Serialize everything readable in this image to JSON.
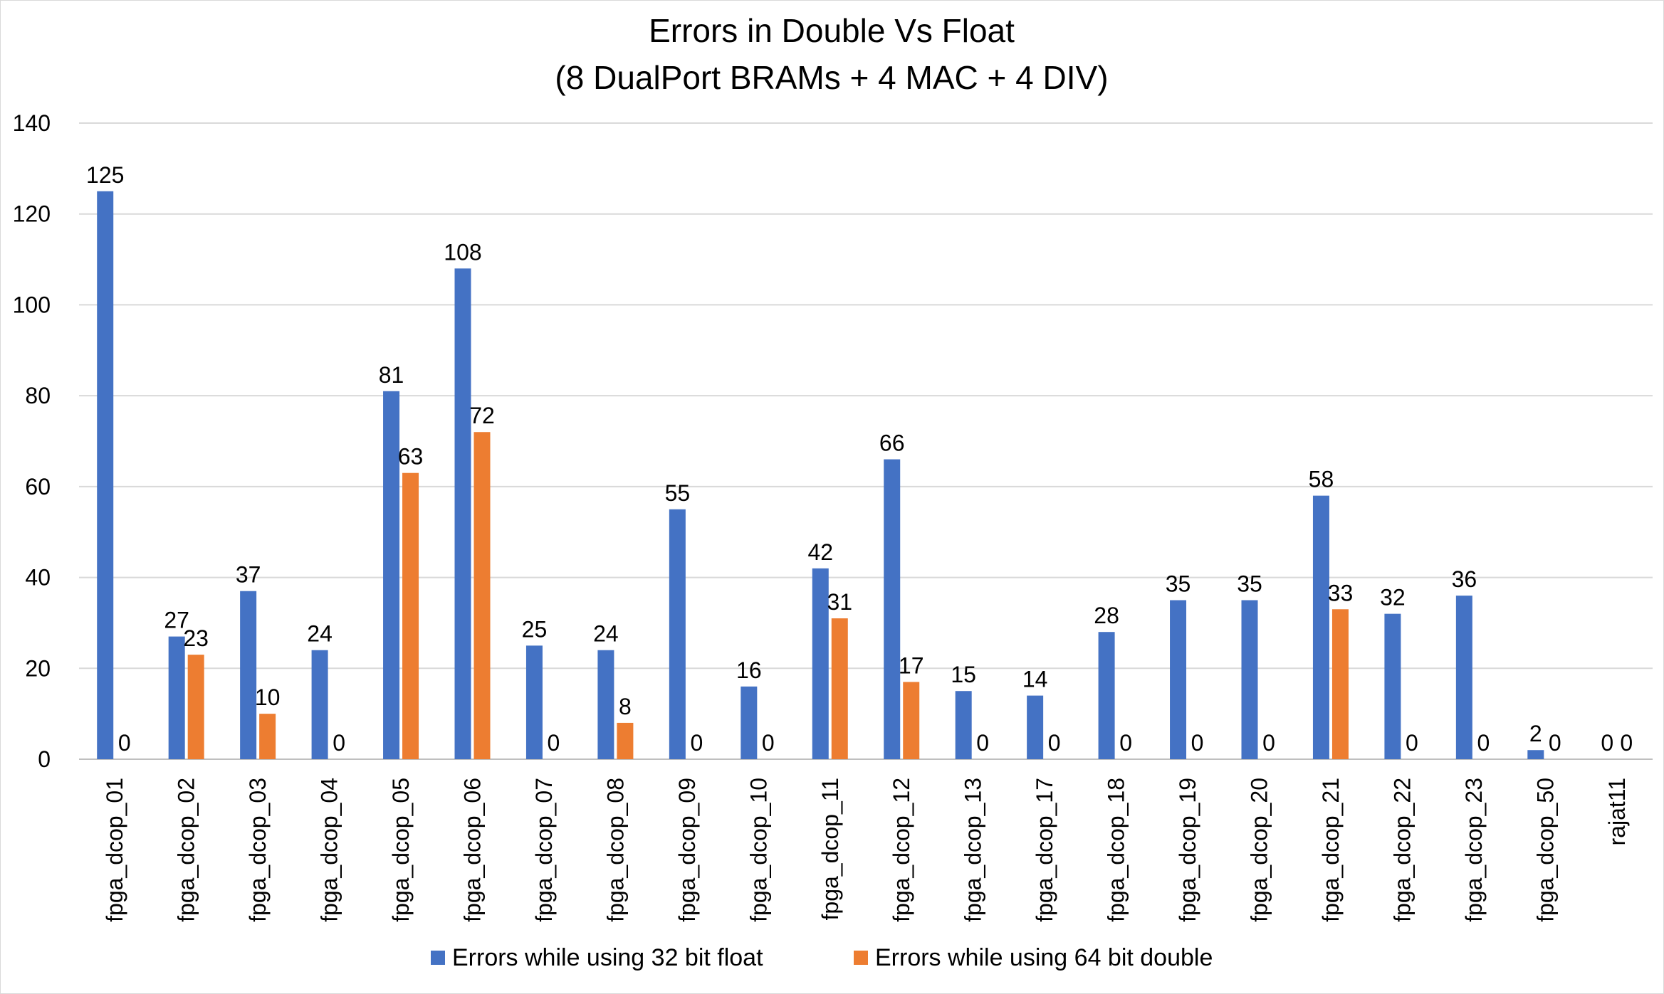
{
  "chart_data": {
    "type": "bar",
    "title": "Errors in Double Vs Float",
    "subtitle": "(8 DualPort BRAMs + 4 MAC + 4 DIV)",
    "xlabel": "",
    "ylabel": "",
    "ylim": [
      0,
      140
    ],
    "yticks": [
      0,
      20,
      40,
      60,
      80,
      100,
      120,
      140
    ],
    "grid": true,
    "legend_position": "bottom",
    "categories": [
      "fpga_dcop_01",
      "fpga_dcop_02",
      "fpga_dcop_03",
      "fpga_dcop_04",
      "fpga_dcop_05",
      "fpga_dcop_06",
      "fpga_dcop_07",
      "fpga_dcop_08",
      "fpga_dcop_09",
      "fpga_dcop_10",
      "fpga_dcop_11",
      "fpga_dcop_12",
      "fpga_dcop_13",
      "fpga_dcop_17",
      "fpga_dcop_18",
      "fpga_dcop_19",
      "fpga_dcop_20",
      "fpga_dcop_21",
      "fpga_dcop_22",
      "fpga_dcop_23",
      "fpga_dcop_50",
      "rajat11"
    ],
    "series": [
      {
        "name": "Errors while using 32 bit float",
        "color": "#4472c4",
        "values": [
          125,
          27,
          37,
          24,
          81,
          108,
          25,
          24,
          55,
          16,
          42,
          66,
          15,
          14,
          28,
          35,
          35,
          58,
          32,
          36,
          2,
          0
        ]
      },
      {
        "name": "Errors while using 64 bit double",
        "color": "#ed7d31",
        "values": [
          0,
          23,
          10,
          0,
          63,
          72,
          0,
          8,
          0,
          0,
          31,
          17,
          0,
          0,
          0,
          0,
          0,
          33,
          0,
          0,
          0,
          0
        ]
      }
    ]
  }
}
